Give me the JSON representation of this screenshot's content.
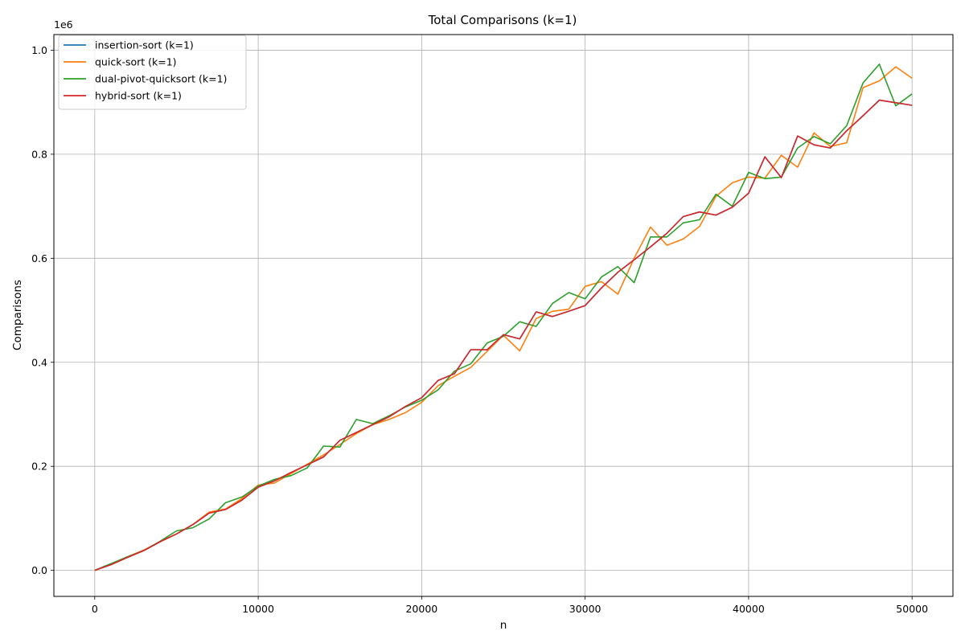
{
  "chart_data": {
    "type": "line",
    "title": "Total Comparisons (k=1)",
    "xlabel": "n",
    "ylabel": "Comparisons",
    "y_offset_label": "1e6",
    "xlim": [
      -2500,
      52500
    ],
    "ylim": [
      -0.05,
      1.03
    ],
    "x_ticks": [
      0,
      10000,
      20000,
      30000,
      40000,
      50000
    ],
    "x_tick_labels": [
      "0",
      "10000",
      "20000",
      "30000",
      "40000",
      "50000"
    ],
    "y_ticks": [
      0.0,
      0.2,
      0.4,
      0.6,
      0.8,
      1.0
    ],
    "y_tick_labels": [
      "0.0",
      "0.2",
      "0.4",
      "0.6",
      "0.8",
      "1.0"
    ],
    "grid": true,
    "legend_position": "top-left",
    "x": [
      0,
      1000,
      2000,
      3000,
      4000,
      5000,
      6000,
      7000,
      8000,
      9000,
      10000,
      11000,
      12000,
      13000,
      14000,
      15000,
      16000,
      17000,
      18000,
      19000,
      20000,
      21000,
      22000,
      23000,
      24000,
      25000,
      26000,
      27000,
      28000,
      29000,
      30000,
      31000,
      32000,
      33000,
      34000,
      35000,
      36000,
      37000,
      38000,
      39000,
      40000,
      41000,
      42000,
      43000,
      44000,
      45000,
      46000,
      47000,
      48000,
      49000,
      50000
    ],
    "series": [
      {
        "name": "insertion-sort (k=1)",
        "color": "#1f77b4",
        "values": [
          0,
          0.011,
          0.025,
          0.038,
          0.055,
          0.07,
          0.088,
          0.11,
          0.117,
          0.135,
          0.16,
          0.172,
          0.188,
          0.203,
          0.218,
          0.25,
          0.265,
          0.28,
          0.295,
          0.315,
          0.332,
          0.365,
          0.378,
          0.424,
          0.424,
          0.453,
          0.445,
          0.497,
          0.488,
          0.498,
          0.509,
          0.543,
          0.573,
          0.597,
          0.622,
          0.648,
          0.68,
          0.689,
          0.683,
          0.698,
          0.725,
          0.795,
          0.755,
          0.835,
          0.818,
          0.812,
          0.845,
          0.874,
          0.904,
          0.899,
          0.894
        ]
      },
      {
        "name": "quick-sort (k=1)",
        "color": "#ff7f0e",
        "values": [
          0,
          0.012,
          0.026,
          0.039,
          0.055,
          0.07,
          0.088,
          0.112,
          0.118,
          0.138,
          0.164,
          0.168,
          0.186,
          0.204,
          0.222,
          0.242,
          0.263,
          0.28,
          0.29,
          0.303,
          0.323,
          0.355,
          0.373,
          0.39,
          0.421,
          0.452,
          0.422,
          0.484,
          0.498,
          0.502,
          0.546,
          0.555,
          0.531,
          0.6,
          0.66,
          0.625,
          0.637,
          0.661,
          0.719,
          0.745,
          0.756,
          0.754,
          0.798,
          0.775,
          0.841,
          0.815,
          0.822,
          0.928,
          0.941,
          0.968,
          0.946
        ]
      },
      {
        "name": "dual-pivot-quicksort (k=1)",
        "color": "#2ca02c",
        "values": [
          0,
          0.013,
          0.026,
          0.038,
          0.056,
          0.076,
          0.082,
          0.099,
          0.13,
          0.141,
          0.162,
          0.175,
          0.182,
          0.197,
          0.239,
          0.237,
          0.29,
          0.282,
          0.297,
          0.314,
          0.327,
          0.347,
          0.383,
          0.397,
          0.437,
          0.45,
          0.478,
          0.469,
          0.513,
          0.534,
          0.522,
          0.564,
          0.584,
          0.553,
          0.641,
          0.641,
          0.668,
          0.674,
          0.723,
          0.7,
          0.765,
          0.753,
          0.756,
          0.812,
          0.834,
          0.82,
          0.855,
          0.937,
          0.973,
          0.893,
          0.916
        ]
      },
      {
        "name": "hybrid-sort (k=1)",
        "color": "#d62728",
        "values": [
          0,
          0.011,
          0.025,
          0.038,
          0.055,
          0.07,
          0.088,
          0.11,
          0.117,
          0.135,
          0.16,
          0.172,
          0.188,
          0.203,
          0.218,
          0.25,
          0.265,
          0.28,
          0.295,
          0.315,
          0.332,
          0.365,
          0.378,
          0.424,
          0.424,
          0.453,
          0.445,
          0.497,
          0.488,
          0.498,
          0.509,
          0.543,
          0.573,
          0.597,
          0.622,
          0.648,
          0.68,
          0.689,
          0.683,
          0.698,
          0.725,
          0.795,
          0.755,
          0.835,
          0.818,
          0.812,
          0.845,
          0.874,
          0.904,
          0.899,
          0.894
        ]
      }
    ]
  }
}
